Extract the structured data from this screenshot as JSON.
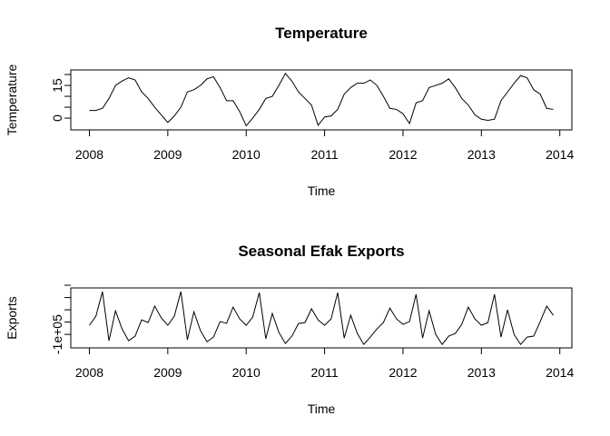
{
  "chart_data": [
    {
      "type": "line",
      "title": "Temperature",
      "xlabel": "Time",
      "ylabel": "Temperature",
      "color": "#000000",
      "x": [
        2008,
        2008.083,
        2008.167,
        2008.25,
        2008.333,
        2008.417,
        2008.5,
        2008.583,
        2008.667,
        2008.75,
        2008.833,
        2008.917,
        2009,
        2009.083,
        2009.167,
        2009.25,
        2009.333,
        2009.417,
        2009.5,
        2009.583,
        2009.667,
        2009.75,
        2009.833,
        2009.917,
        2010,
        2010.083,
        2010.167,
        2010.25,
        2010.333,
        2010.417,
        2010.5,
        2010.583,
        2010.667,
        2010.75,
        2010.833,
        2010.917,
        2011,
        2011.083,
        2011.167,
        2011.25,
        2011.333,
        2011.417,
        2011.5,
        2011.583,
        2011.667,
        2011.75,
        2011.833,
        2011.917,
        2012,
        2012.083,
        2012.167,
        2012.25,
        2012.333,
        2012.417,
        2012.5,
        2012.583,
        2012.667,
        2012.75,
        2012.833,
        2012.917,
        2013,
        2013.083,
        2013.167,
        2013.25,
        2013.333,
        2013.417,
        2013.5,
        2013.583,
        2013.667,
        2013.75,
        2013.833,
        2013.917
      ],
      "values": [
        3.5,
        3.5,
        4.5,
        9,
        15,
        17,
        18.5,
        17.5,
        12,
        9,
        5,
        1.5,
        -2,
        1,
        5,
        12,
        13,
        15,
        18,
        19,
        14,
        8,
        8,
        3,
        -3.5,
        0,
        4,
        9,
        10,
        15,
        20.5,
        17,
        12,
        9,
        6,
        -3.3,
        0.5,
        1,
        4,
        11,
        14,
        16,
        16,
        17.5,
        15,
        10,
        4.5,
        4,
        2,
        -2.5,
        7,
        8,
        14,
        15,
        16,
        18,
        14,
        9,
        6,
        1.5,
        -0.5,
        -1,
        -0.5,
        8,
        12,
        16,
        19.5,
        18.5,
        13,
        11,
        4.5,
        4
      ],
      "xlim": [
        2007.763,
        2014.154
      ],
      "xticks": [
        2008,
        2009,
        2010,
        2011,
        2012,
        2013,
        2014
      ],
      "ylim": [
        -5.4,
        22.1
      ],
      "yticks": [
        0,
        {
          "value": 5,
          "label": null
        },
        {
          "value": 10,
          "label": null
        },
        15,
        {
          "value": 20,
          "label": null
        }
      ]
    },
    {
      "type": "line",
      "title": "Seasonal Efak Exports",
      "xlabel": "Time",
      "ylabel": "Exports",
      "color": "#000000",
      "x": [
        2008,
        2008.083,
        2008.167,
        2008.25,
        2008.333,
        2008.417,
        2008.5,
        2008.583,
        2008.667,
        2008.75,
        2008.833,
        2008.917,
        2009,
        2009.083,
        2009.167,
        2009.25,
        2009.333,
        2009.417,
        2009.5,
        2009.583,
        2009.667,
        2009.75,
        2009.833,
        2009.917,
        2010,
        2010.083,
        2010.167,
        2010.25,
        2010.333,
        2010.417,
        2010.5,
        2010.583,
        2010.667,
        2010.75,
        2010.833,
        2010.917,
        2011,
        2011.083,
        2011.167,
        2011.25,
        2011.333,
        2011.417,
        2011.5,
        2011.583,
        2011.667,
        2011.75,
        2011.833,
        2011.917,
        2012,
        2012.083,
        2012.167,
        2012.25,
        2012.333,
        2012.417,
        2012.5,
        2012.583,
        2012.667,
        2012.75,
        2012.833,
        2012.917,
        2013,
        2013.083,
        2013.167,
        2013.25,
        2013.333,
        2013.417,
        2013.5,
        2013.583,
        2013.667,
        2013.75,
        2013.833,
        2013.917
      ],
      "values": [
        -63000,
        -26000,
        74000,
        -126000,
        -4000,
        -78000,
        -126000,
        -107000,
        -41000,
        -52000,
        15000,
        -33000,
        -63000,
        -26000,
        74000,
        -122000,
        -8000,
        -85000,
        -130000,
        -111000,
        -48000,
        -55000,
        11000,
        -37000,
        -63000,
        -30000,
        70000,
        -118000,
        -15000,
        -92000,
        -137000,
        -107000,
        -56000,
        -52000,
        4000,
        -41000,
        -63000,
        -37000,
        70000,
        -115000,
        -22000,
        -96000,
        -141000,
        -111000,
        -78000,
        -52000,
        7000,
        -37000,
        -59000,
        -48000,
        63000,
        -115000,
        -4000,
        -100000,
        -141000,
        -107000,
        -96000,
        -59000,
        11000,
        -37000,
        -63000,
        -52000,
        63000,
        -111000,
        0,
        -100000,
        -141000,
        -111000,
        -107000,
        -48000,
        15000,
        -22000
      ],
      "xlim": [
        2007.763,
        2014.154
      ],
      "xticks": [
        2008,
        2009,
        2010,
        2011,
        2012,
        2013,
        2014
      ],
      "ylim": [
        -155000,
        89000
      ],
      "yticks": [
        {
          "value": -100000,
          "label": "-1e+05"
        },
        {
          "value": -50000,
          "label": null
        },
        {
          "value": 0,
          "label": null
        },
        {
          "value": 50000,
          "label": null
        },
        {
          "value": 100000,
          "label": null
        }
      ]
    }
  ]
}
